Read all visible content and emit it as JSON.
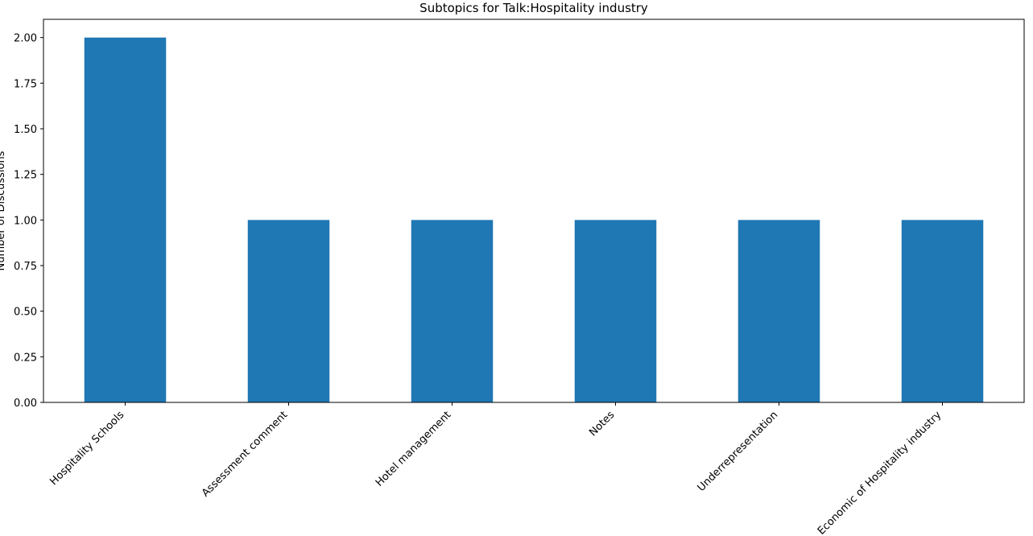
{
  "chart_data": {
    "type": "bar",
    "title": "Subtopics for Talk:Hospitality industry",
    "xlabel": "",
    "ylabel": "Number of Discussions",
    "categories": [
      "Hospitality Schools",
      "Assessment comment",
      "Hotel management",
      "Notes",
      "Underrepresentation",
      "Economic of Hospitality industry"
    ],
    "values": [
      2,
      1,
      1,
      1,
      1,
      1
    ],
    "ylim": [
      0,
      2.1
    ],
    "yticks": [
      "0.00",
      "0.25",
      "0.50",
      "0.75",
      "1.00",
      "1.25",
      "1.50",
      "1.75",
      "2.00"
    ],
    "bar_color": "#1f77b4",
    "grid": false,
    "legend": "none"
  }
}
